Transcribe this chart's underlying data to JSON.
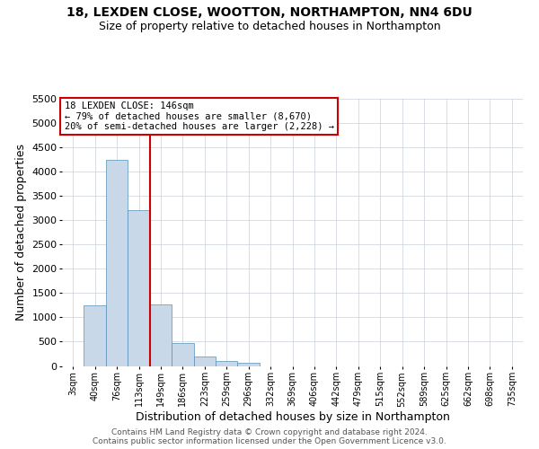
{
  "title_line1": "18, LEXDEN CLOSE, WOOTTON, NORTHAMPTON, NN4 6DU",
  "title_line2": "Size of property relative to detached houses in Northampton",
  "xlabel": "Distribution of detached houses by size in Northampton",
  "ylabel": "Number of detached properties",
  "footer_line1": "Contains HM Land Registry data © Crown copyright and database right 2024.",
  "footer_line2": "Contains public sector information licensed under the Open Government Licence v3.0.",
  "annotation_line1": "18 LEXDEN CLOSE: 146sqm",
  "annotation_line2": "← 79% of detached houses are smaller (8,670)",
  "annotation_line3": "20% of semi-detached houses are larger (2,228) →",
  "bar_color": "#c8d8e8",
  "bar_edge_color": "#5590b8",
  "vline_color": "#cc0000",
  "annotation_box_edgecolor": "#cc0000",
  "categories": [
    "3sqm",
    "40sqm",
    "76sqm",
    "113sqm",
    "149sqm",
    "186sqm",
    "223sqm",
    "259sqm",
    "296sqm",
    "332sqm",
    "369sqm",
    "406sqm",
    "442sqm",
    "479sqm",
    "515sqm",
    "552sqm",
    "589sqm",
    "625sqm",
    "662sqm",
    "698sqm",
    "735sqm"
  ],
  "values": [
    0,
    1250,
    4250,
    3200,
    1270,
    470,
    195,
    95,
    60,
    0,
    0,
    0,
    0,
    0,
    0,
    0,
    0,
    0,
    0,
    0,
    0
  ],
  "ylim": [
    0,
    5500
  ],
  "yticks": [
    0,
    500,
    1000,
    1500,
    2000,
    2500,
    3000,
    3500,
    4000,
    4500,
    5000,
    5500
  ],
  "vline_x_index": 4,
  "background_color": "#ffffff",
  "grid_color": "#c8d0d8"
}
